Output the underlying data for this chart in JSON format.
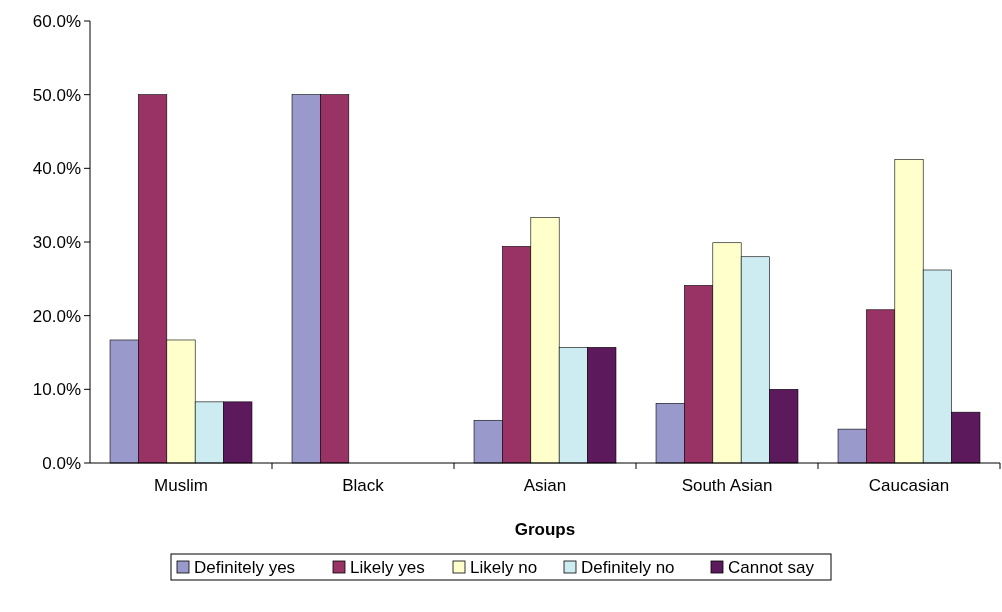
{
  "chart_data": {
    "type": "bar",
    "xlabel": "Groups",
    "categories": [
      "Muslim",
      "Black",
      "Asian",
      "South Asian",
      "Caucasian"
    ],
    "series": [
      {
        "name": "Definitely yes",
        "color": "#9999cc",
        "values": [
          16.7,
          50,
          5.8,
          8.1,
          4.6
        ]
      },
      {
        "name": "Likely yes",
        "color": "#993366",
        "values": [
          50,
          50,
          29.4,
          24.1,
          20.8
        ]
      },
      {
        "name": "Likely no",
        "color": "#ffffcc",
        "values": [
          16.7,
          0,
          33.3,
          29.9,
          41.2
        ]
      },
      {
        "name": "Definitely no",
        "color": "#ccecf2",
        "values": [
          8.3,
          0,
          15.7,
          28.0,
          26.2
        ]
      },
      {
        "name": "Cannot say",
        "color": "#5c1a5c",
        "values": [
          8.3,
          0,
          15.7,
          10.0,
          6.9
        ]
      }
    ],
    "ylim": [
      0,
      60
    ],
    "yticks": [
      {
        "value": 0,
        "label": "0.0%"
      },
      {
        "value": 10,
        "label": "10.0%"
      },
      {
        "value": 20,
        "label": "20.0%"
      },
      {
        "value": 30,
        "label": "30.0%"
      },
      {
        "value": 40,
        "label": "40.0%"
      },
      {
        "value": 50,
        "label": "50.0%"
      },
      {
        "value": 60,
        "label": "60.0%"
      }
    ],
    "grid": false,
    "legend": "bottom"
  }
}
